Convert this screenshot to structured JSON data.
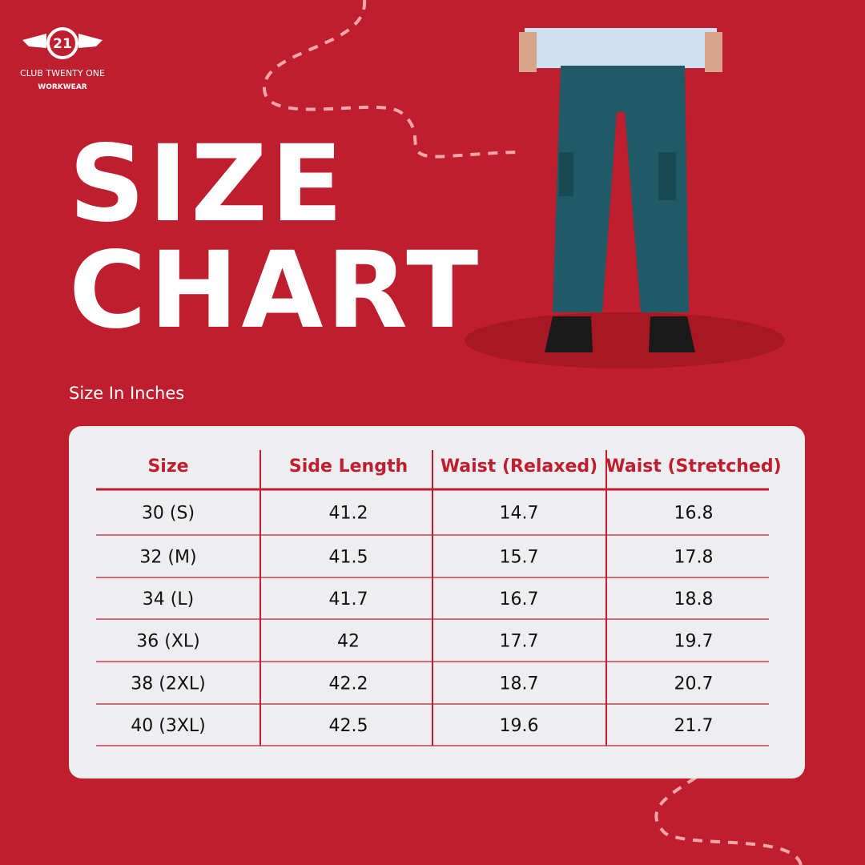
{
  "logo": {
    "badge": "21",
    "brand": "CLUB TWENTY ONE",
    "tagline": "WORKWEAR"
  },
  "title": {
    "line1": "SIZE",
    "line2": "CHART"
  },
  "subtitle": "Size In Inches",
  "table": {
    "headers": [
      "Size",
      "Side Length",
      "Waist (Relaxed)",
      "Waist (Stretched)"
    ],
    "rows": [
      [
        "30 (S)",
        "41.2",
        "14.7",
        "16.8"
      ],
      [
        "32 (M)",
        "41.5",
        "15.7",
        "17.8"
      ],
      [
        "34 (L)",
        "41.7",
        "16.7",
        "18.8"
      ],
      [
        "36 (XL)",
        "42",
        "17.7",
        "19.7"
      ],
      [
        "38 (2XL)",
        "42.2",
        "18.7",
        "20.7"
      ],
      [
        "40 (3XL)",
        "42.5",
        "19.6",
        "21.7"
      ]
    ]
  }
}
